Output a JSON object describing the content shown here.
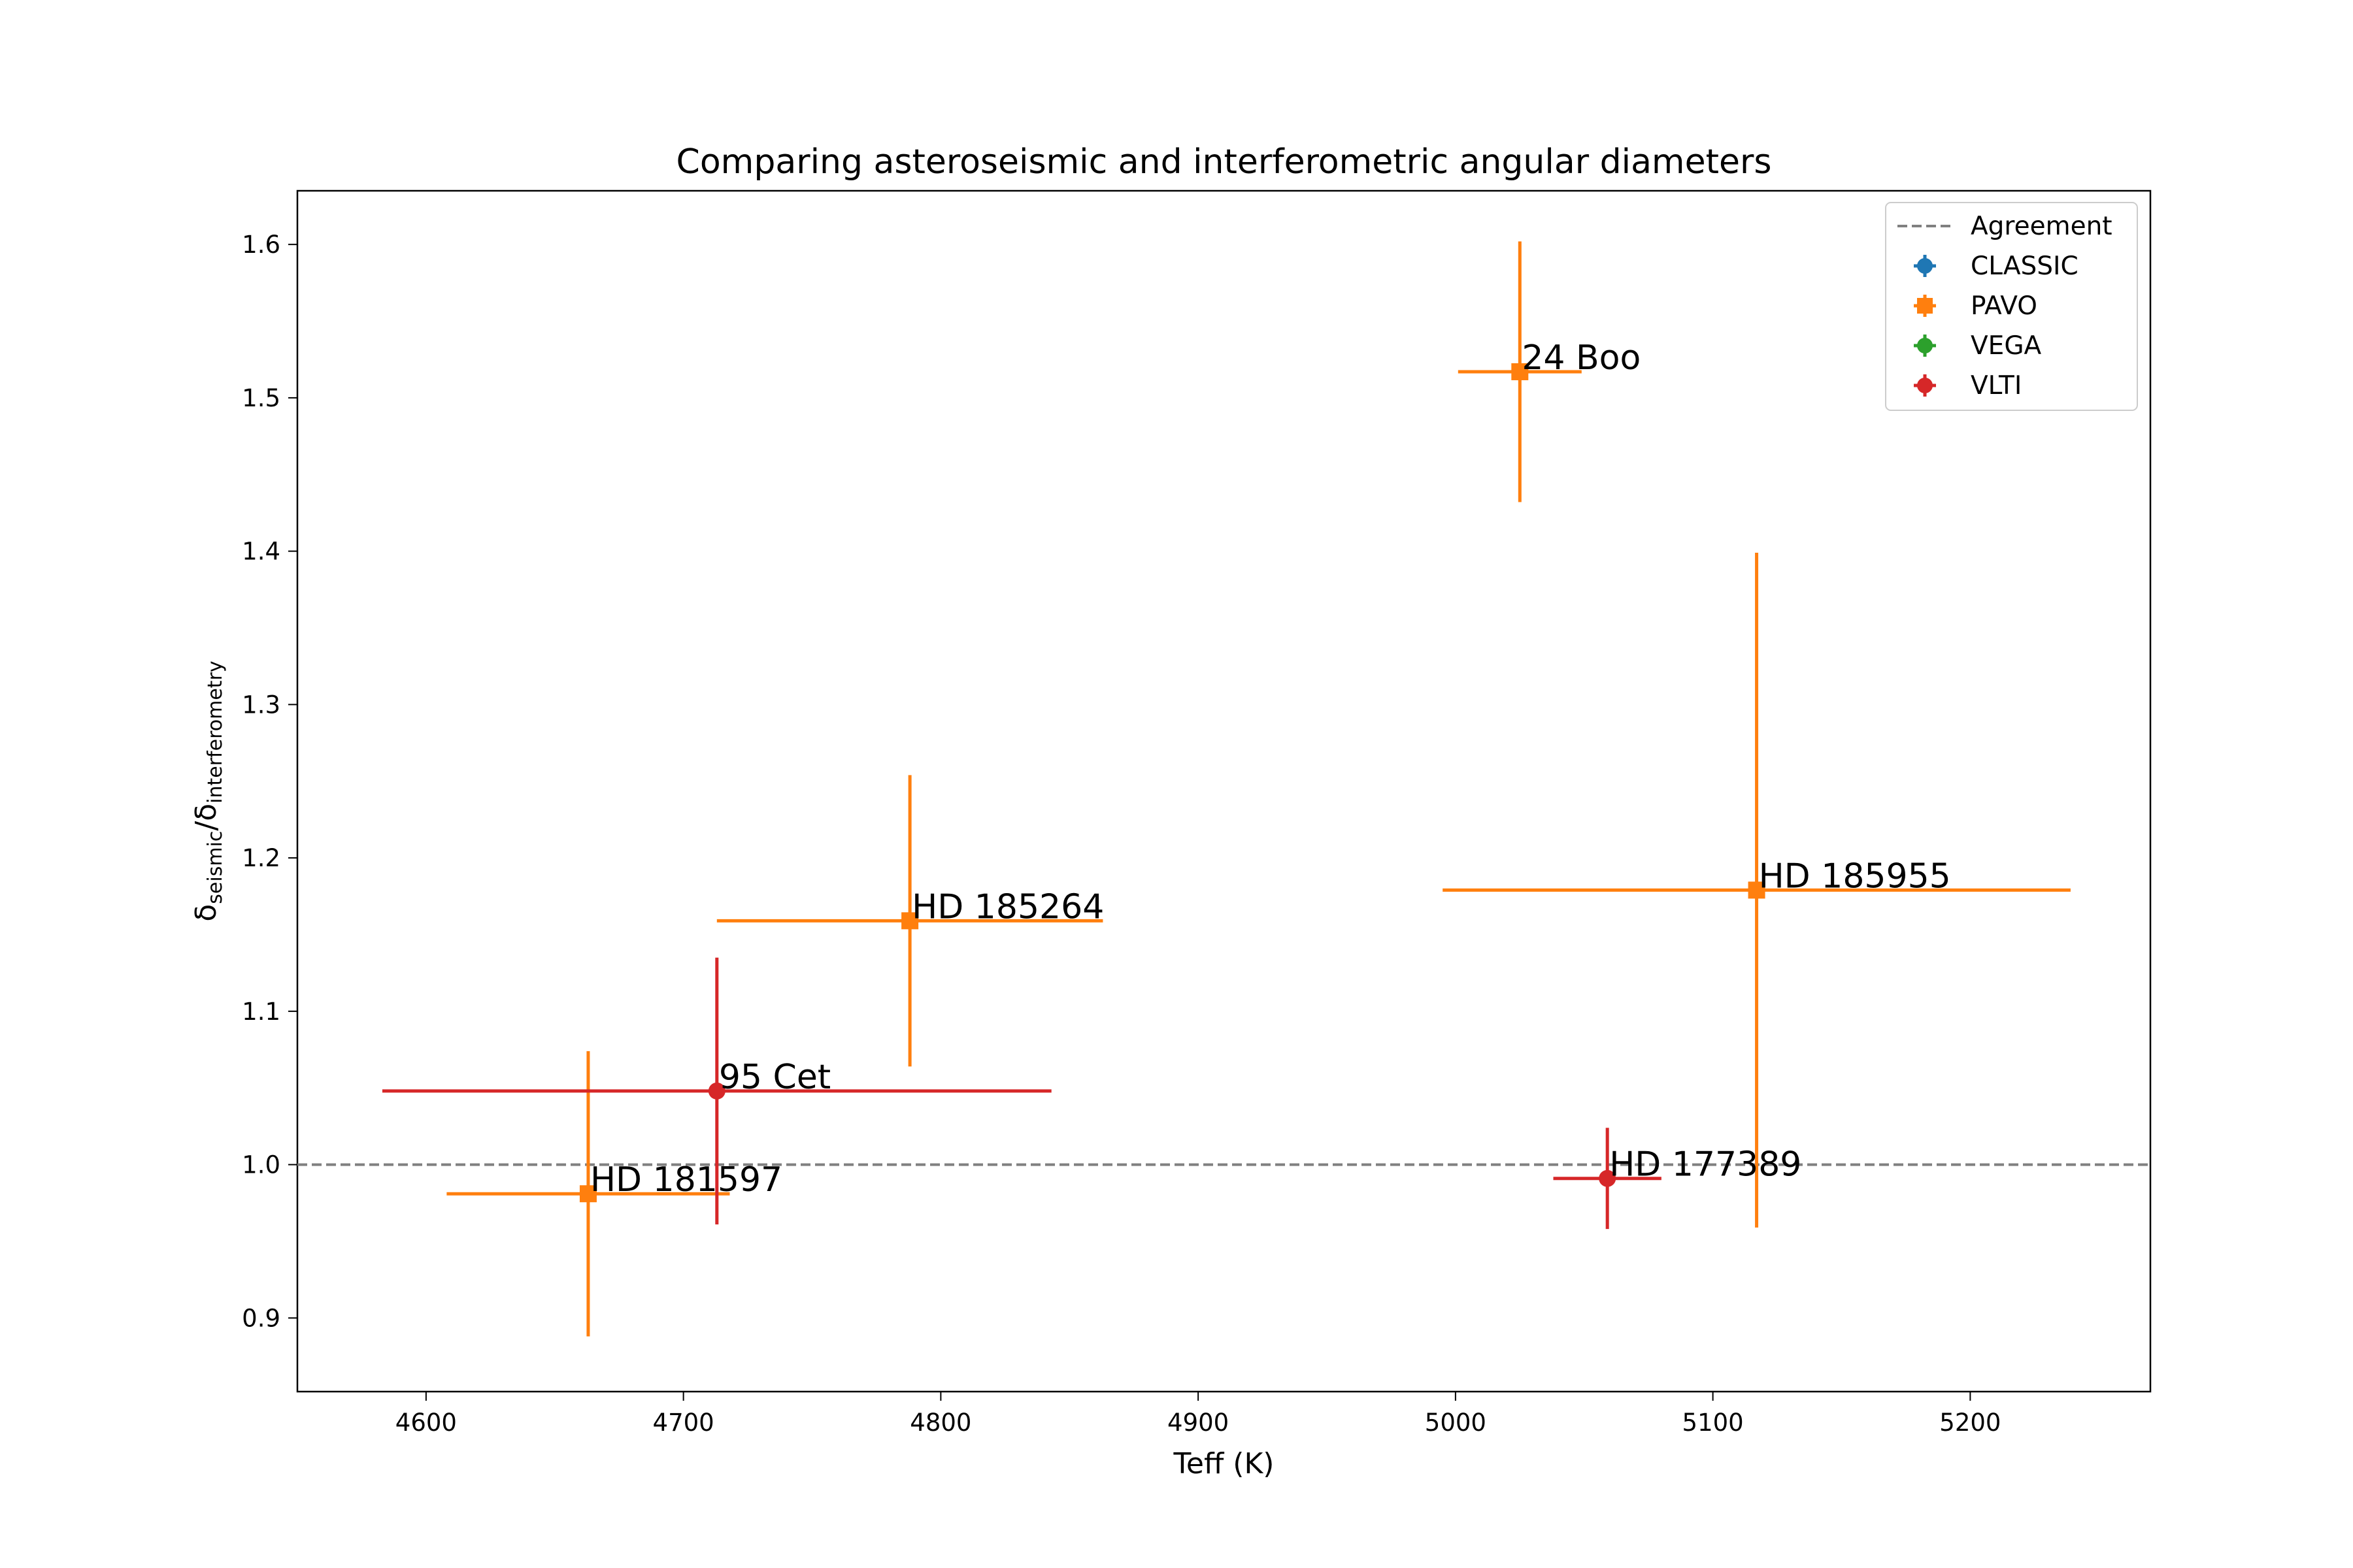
{
  "chart_data": {
    "type": "scatter",
    "title": "Comparing asteroseismic and interferometric angular diameters",
    "xlabel": "Teff (K)",
    "ylabel": {
      "main1": "δ",
      "sub1": "seismic",
      "sep": "/δ",
      "sub2": "interferometry"
    },
    "xlim": [
      4550,
      5270
    ],
    "ylim": [
      0.852,
      1.635
    ],
    "xticks": [
      4600,
      4700,
      4800,
      4900,
      5000,
      5100,
      5200
    ],
    "yticks": [
      0.9,
      1.0,
      1.1,
      1.2,
      1.3,
      1.4,
      1.5,
      1.6
    ],
    "reference_line": {
      "label": "Agreement",
      "y": 1.0,
      "color": "#808080",
      "style": "dashed"
    },
    "series": [
      {
        "name": "CLASSIC",
        "color": "#1f77b4",
        "marker": "circle",
        "points": []
      },
      {
        "name": "PAVO",
        "color": "#ff7f0e",
        "marker": "square",
        "points": [
          {
            "label": "24 Boo",
            "x": 5025,
            "y": 1.517,
            "xerr": 24,
            "yerr": 0.085
          },
          {
            "label": "HD 185955",
            "x": 5117,
            "y": 1.179,
            "xerr": 122,
            "yerr": 0.22
          },
          {
            "label": "HD 185264",
            "x": 4788,
            "y": 1.159,
            "xerr": 75,
            "yerr": 0.095
          },
          {
            "label": "HD 181597",
            "x": 4663,
            "y": 0.981,
            "xerr": 55,
            "yerr": 0.093
          }
        ]
      },
      {
        "name": "VEGA",
        "color": "#2ca02c",
        "marker": "circle",
        "points": []
      },
      {
        "name": "VLTI",
        "color": "#d62728",
        "marker": "circle",
        "points": [
          {
            "label": "95 Cet",
            "x": 4713,
            "y": 1.048,
            "xerr": 130,
            "yerr": 0.087
          },
          {
            "label": "HD 177389",
            "x": 5059,
            "y": 0.991,
            "xerr": 21,
            "yerr": 0.033
          }
        ]
      }
    ],
    "legend": {
      "position": "top-right",
      "entries": [
        "Agreement",
        "CLASSIC",
        "PAVO",
        "VEGA",
        "VLTI"
      ]
    }
  }
}
